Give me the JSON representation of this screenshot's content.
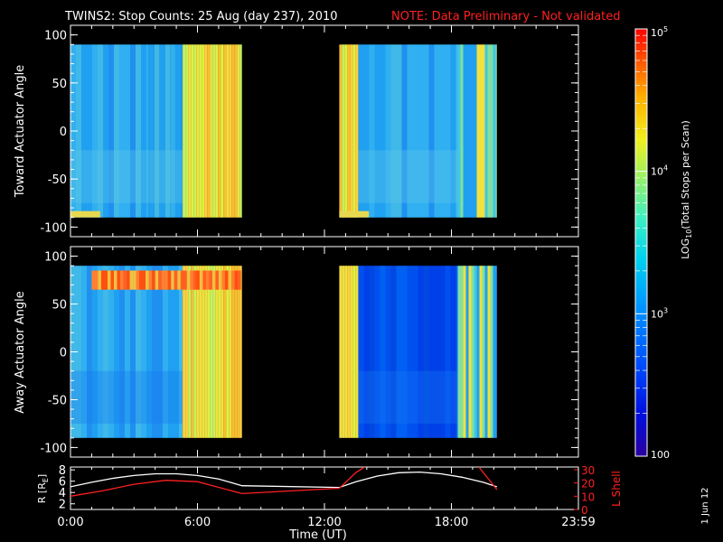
{
  "header": {
    "title": "TWINS2: Stop Counts: 25 Aug (day 237), 2010",
    "note": "NOTE: Data Preliminary - Not validated"
  },
  "stamp": "1 Jun 12",
  "colors": {
    "note": "#ff2020",
    "lshell": "#ff2020",
    "radius": "#ffffff",
    "axes": "#ffffff",
    "background": "#000000"
  },
  "chart_data": [
    {
      "type": "heatmap",
      "title": "",
      "ylabel": "Toward Actuator Angle",
      "ylim": [
        -110,
        110
      ],
      "yticks": [
        100,
        50,
        0,
        -50,
        -100
      ],
      "y_extent": [
        -90,
        90
      ],
      "x_unit": "hours UT",
      "data_intervals": [
        [
          0.0,
          8.1
        ],
        [
          12.7,
          20.15
        ]
      ],
      "zscale": "log",
      "zrange": [
        100,
        100000
      ],
      "bands_hours": [
        {
          "t0": 0.0,
          "t1": 3.7,
          "level": "low"
        },
        {
          "t0": 3.7,
          "t1": 5.3,
          "level": "low"
        },
        {
          "t0": 5.3,
          "t1": 8.1,
          "level": "high"
        },
        {
          "t0": 12.7,
          "t1": 13.6,
          "level": "high"
        },
        {
          "t0": 13.6,
          "t1": 18.3,
          "level": "low"
        },
        {
          "t0": 18.3,
          "t1": 20.15,
          "level": "mid"
        }
      ]
    },
    {
      "type": "heatmap",
      "title": "",
      "ylabel": "Away Actuator Angle",
      "ylim": [
        -110,
        110
      ],
      "yticks": [
        100,
        50,
        0,
        -50,
        -100
      ],
      "y_extent": [
        -90,
        90
      ],
      "x_unit": "hours UT",
      "data_intervals": [
        [
          0.0,
          8.1
        ],
        [
          12.7,
          20.15
        ]
      ],
      "zscale": "log",
      "zrange": [
        100,
        100000
      ],
      "features": [
        "high-count band near +75 deg from 1:00 to 8:00 UT"
      ],
      "bands_hours": [
        {
          "t0": 0.0,
          "t1": 5.3,
          "level": "low"
        },
        {
          "t0": 5.3,
          "t1": 8.1,
          "level": "high"
        },
        {
          "t0": 12.7,
          "t1": 13.6,
          "level": "high"
        },
        {
          "t0": 13.6,
          "t1": 18.3,
          "level": "very-low"
        },
        {
          "t0": 18.3,
          "t1": 20.15,
          "level": "mid"
        }
      ]
    },
    {
      "type": "line",
      "title": "",
      "xlabel": "Time (UT)",
      "xlim": [
        0,
        24
      ],
      "xtick_labels": [
        "0:00",
        "6:00",
        "12:00",
        "18:00",
        "23:59"
      ],
      "xtick_hours": [
        0,
        6,
        12,
        18,
        24
      ],
      "ylabel_left": "R [RE]",
      "ylabel_right": "L Shell",
      "ylim_left": [
        1,
        8.5
      ],
      "yticks_left": [
        2,
        4,
        6,
        8
      ],
      "ylim_right": [
        0,
        32
      ],
      "yticks_right": [
        0,
        10,
        20,
        30
      ],
      "series": [
        {
          "name": "R",
          "axis": "left",
          "color": "#ffffff",
          "x": [
            0.0,
            1.0,
            2.0,
            3.0,
            4.0,
            5.0,
            6.0,
            7.0,
            8.1,
            12.7,
            13.5,
            14.5,
            15.5,
            16.5,
            17.5,
            18.5,
            19.5,
            20.15
          ],
          "y": [
            5.0,
            5.8,
            6.5,
            7.0,
            7.3,
            7.3,
            7.0,
            6.4,
            5.2,
            4.9,
            5.9,
            6.9,
            7.5,
            7.6,
            7.3,
            6.7,
            5.8,
            5.0
          ]
        },
        {
          "name": "L Shell",
          "axis": "right",
          "color": "#ff2020",
          "x": [
            0.0,
            1.5,
            3.0,
            4.5,
            6.0,
            8.1,
            12.7,
            13.5,
            13.9
          ],
          "y": [
            10,
            14,
            19,
            22,
            21,
            12,
            16,
            28,
            32
          ]
        },
        {
          "name": "L Shell",
          "axis": "right",
          "color": "#ff2020",
          "x": [
            19.3,
            20.15
          ],
          "y": [
            32,
            15
          ]
        }
      ]
    }
  ],
  "colorbar": {
    "label": "LOG",
    "label_sub": "10",
    "label_rest": "(Total Stops per Scan)",
    "ticks": [
      {
        "base": "10",
        "exp": "5",
        "value": 100000
      },
      {
        "base": "10",
        "exp": "4",
        "value": 10000
      },
      {
        "base": "10",
        "exp": "3",
        "value": 1000
      },
      {
        "base": "100",
        "exp": "",
        "value": 100
      }
    ]
  },
  "rlabel": {
    "base": "R [R",
    "sub": "E",
    "end": "]"
  }
}
